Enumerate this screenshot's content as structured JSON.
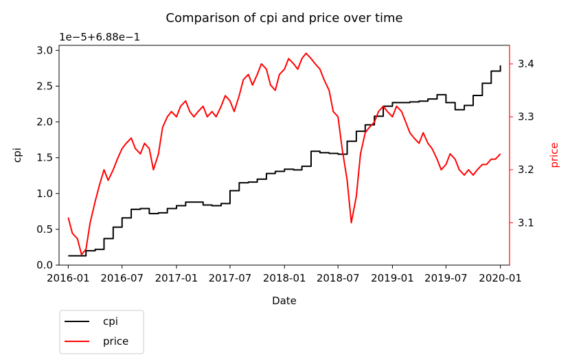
{
  "chart_data": {
    "type": "line",
    "title": "Comparison of cpi and price over time",
    "xlabel": "Date",
    "x_ticks": [
      "2016-01",
      "2016-07",
      "2017-01",
      "2017-07",
      "2018-01",
      "2018-07",
      "2019-01",
      "2019-07",
      "2020-01"
    ],
    "xlim": [
      "2015-12-01",
      "2020-02-01"
    ],
    "left_axis": {
      "label": "cpi",
      "offset_text": "1e−5+6.88e−1",
      "ticks": [
        "0.0",
        "0.5",
        "1.0",
        "1.5",
        "2.0",
        "2.5",
        "3.0"
      ],
      "tick_values": [
        0,
        0.5,
        1.0,
        1.5,
        2.0,
        2.5,
        3.0
      ],
      "ylim": [
        0,
        3.07
      ],
      "color": "#000000"
    },
    "right_axis": {
      "label": "price",
      "ticks": [
        "3.1",
        "3.2",
        "3.3",
        "3.4"
      ],
      "tick_values": [
        3.1,
        3.2,
        3.3,
        3.4
      ],
      "ylim": [
        3.02,
        3.435
      ],
      "color": "#ff0000"
    },
    "series": [
      {
        "name": "cpi",
        "axis": "left",
        "color": "#000000",
        "step": true,
        "points": [
          [
            "2016-01-01",
            0.13
          ],
          [
            "2016-02-01",
            0.13
          ],
          [
            "2016-03-01",
            0.2
          ],
          [
            "2016-04-01",
            0.22
          ],
          [
            "2016-05-01",
            0.37
          ],
          [
            "2016-06-01",
            0.53
          ],
          [
            "2016-07-01",
            0.66
          ],
          [
            "2016-08-01",
            0.78
          ],
          [
            "2016-09-01",
            0.79
          ],
          [
            "2016-10-01",
            0.72
          ],
          [
            "2016-11-01",
            0.73
          ],
          [
            "2016-12-01",
            0.79
          ],
          [
            "2017-01-01",
            0.83
          ],
          [
            "2017-02-01",
            0.88
          ],
          [
            "2017-03-01",
            0.88
          ],
          [
            "2017-04-01",
            0.84
          ],
          [
            "2017-05-01",
            0.83
          ],
          [
            "2017-06-01",
            0.86
          ],
          [
            "2017-07-01",
            1.04
          ],
          [
            "2017-08-01",
            1.15
          ],
          [
            "2017-09-01",
            1.16
          ],
          [
            "2017-10-01",
            1.2
          ],
          [
            "2017-11-01",
            1.28
          ],
          [
            "2017-12-01",
            1.31
          ],
          [
            "2018-01-01",
            1.34
          ],
          [
            "2018-02-01",
            1.33
          ],
          [
            "2018-03-01",
            1.38
          ],
          [
            "2018-04-01",
            1.59
          ],
          [
            "2018-05-01",
            1.57
          ],
          [
            "2018-06-01",
            1.56
          ],
          [
            "2018-07-01",
            1.55
          ],
          [
            "2018-08-01",
            1.73
          ],
          [
            "2018-09-01",
            1.87
          ],
          [
            "2018-10-01",
            1.96
          ],
          [
            "2018-11-01",
            2.08
          ],
          [
            "2018-12-01",
            2.22
          ],
          [
            "2019-01-01",
            2.27
          ],
          [
            "2019-02-01",
            2.27
          ],
          [
            "2019-03-01",
            2.28
          ],
          [
            "2019-04-01",
            2.29
          ],
          [
            "2019-05-01",
            2.32
          ],
          [
            "2019-06-01",
            2.38
          ],
          [
            "2019-07-01",
            2.27
          ],
          [
            "2019-08-01",
            2.17
          ],
          [
            "2019-09-01",
            2.23
          ],
          [
            "2019-10-01",
            2.37
          ],
          [
            "2019-11-01",
            2.54
          ],
          [
            "2019-12-01",
            2.71
          ],
          [
            "2020-01-01",
            2.79
          ]
        ]
      },
      {
        "name": "price",
        "axis": "right",
        "color": "#ff0000",
        "step": false,
        "points": [
          [
            "2016-01-01",
            3.11
          ],
          [
            "2016-01-15",
            3.08
          ],
          [
            "2016-02-01",
            3.07
          ],
          [
            "2016-02-15",
            3.04
          ],
          [
            "2016-03-01",
            3.05
          ],
          [
            "2016-03-15",
            3.1
          ],
          [
            "2016-04-01",
            3.14
          ],
          [
            "2016-04-15",
            3.17
          ],
          [
            "2016-05-01",
            3.2
          ],
          [
            "2016-05-15",
            3.18
          ],
          [
            "2016-06-01",
            3.2
          ],
          [
            "2016-06-15",
            3.22
          ],
          [
            "2016-07-01",
            3.24
          ],
          [
            "2016-07-15",
            3.25
          ],
          [
            "2016-08-01",
            3.26
          ],
          [
            "2016-08-15",
            3.24
          ],
          [
            "2016-09-01",
            3.23
          ],
          [
            "2016-09-15",
            3.25
          ],
          [
            "2016-10-01",
            3.24
          ],
          [
            "2016-10-15",
            3.2
          ],
          [
            "2016-11-01",
            3.23
          ],
          [
            "2016-11-15",
            3.28
          ],
          [
            "2016-12-01",
            3.3
          ],
          [
            "2016-12-15",
            3.31
          ],
          [
            "2017-01-01",
            3.3
          ],
          [
            "2017-01-15",
            3.32
          ],
          [
            "2017-02-01",
            3.33
          ],
          [
            "2017-02-15",
            3.31
          ],
          [
            "2017-03-01",
            3.3
          ],
          [
            "2017-03-15",
            3.31
          ],
          [
            "2017-04-01",
            3.32
          ],
          [
            "2017-04-15",
            3.3
          ],
          [
            "2017-05-01",
            3.31
          ],
          [
            "2017-05-15",
            3.3
          ],
          [
            "2017-06-01",
            3.32
          ],
          [
            "2017-06-15",
            3.34
          ],
          [
            "2017-07-01",
            3.33
          ],
          [
            "2017-07-15",
            3.31
          ],
          [
            "2017-08-01",
            3.34
          ],
          [
            "2017-08-15",
            3.37
          ],
          [
            "2017-09-01",
            3.38
          ],
          [
            "2017-09-15",
            3.36
          ],
          [
            "2017-10-01",
            3.38
          ],
          [
            "2017-10-15",
            3.4
          ],
          [
            "2017-11-01",
            3.39
          ],
          [
            "2017-11-15",
            3.36
          ],
          [
            "2017-12-01",
            3.35
          ],
          [
            "2017-12-15",
            3.38
          ],
          [
            "2018-01-01",
            3.39
          ],
          [
            "2018-01-15",
            3.41
          ],
          [
            "2018-02-01",
            3.4
          ],
          [
            "2018-02-15",
            3.39
          ],
          [
            "2018-03-01",
            3.41
          ],
          [
            "2018-03-15",
            3.42
          ],
          [
            "2018-04-01",
            3.41
          ],
          [
            "2018-04-15",
            3.4
          ],
          [
            "2018-05-01",
            3.39
          ],
          [
            "2018-05-15",
            3.37
          ],
          [
            "2018-06-01",
            3.35
          ],
          [
            "2018-06-15",
            3.31
          ],
          [
            "2018-07-01",
            3.3
          ],
          [
            "2018-07-15",
            3.24
          ],
          [
            "2018-08-01",
            3.18
          ],
          [
            "2018-08-15",
            3.1
          ],
          [
            "2018-09-01",
            3.15
          ],
          [
            "2018-09-15",
            3.23
          ],
          [
            "2018-10-01",
            3.27
          ],
          [
            "2018-10-15",
            3.28
          ],
          [
            "2018-11-01",
            3.29
          ],
          [
            "2018-11-15",
            3.31
          ],
          [
            "2018-12-01",
            3.32
          ],
          [
            "2018-12-15",
            3.31
          ],
          [
            "2019-01-01",
            3.3
          ],
          [
            "2019-01-15",
            3.32
          ],
          [
            "2019-02-01",
            3.31
          ],
          [
            "2019-02-15",
            3.29
          ],
          [
            "2019-03-01",
            3.27
          ],
          [
            "2019-03-15",
            3.26
          ],
          [
            "2019-04-01",
            3.25
          ],
          [
            "2019-04-15",
            3.27
          ],
          [
            "2019-05-01",
            3.25
          ],
          [
            "2019-05-15",
            3.24
          ],
          [
            "2019-06-01",
            3.22
          ],
          [
            "2019-06-15",
            3.2
          ],
          [
            "2019-07-01",
            3.21
          ],
          [
            "2019-07-15",
            3.23
          ],
          [
            "2019-08-01",
            3.22
          ],
          [
            "2019-08-15",
            3.2
          ],
          [
            "2019-09-01",
            3.19
          ],
          [
            "2019-09-15",
            3.2
          ],
          [
            "2019-10-01",
            3.19
          ],
          [
            "2019-10-15",
            3.2
          ],
          [
            "2019-11-01",
            3.21
          ],
          [
            "2019-11-15",
            3.21
          ],
          [
            "2019-12-01",
            3.22
          ],
          [
            "2019-12-15",
            3.22
          ],
          [
            "2020-01-01",
            3.23
          ]
        ]
      }
    ],
    "legend": {
      "placement": "below-left",
      "entries": [
        "cpi",
        "price"
      ]
    }
  }
}
